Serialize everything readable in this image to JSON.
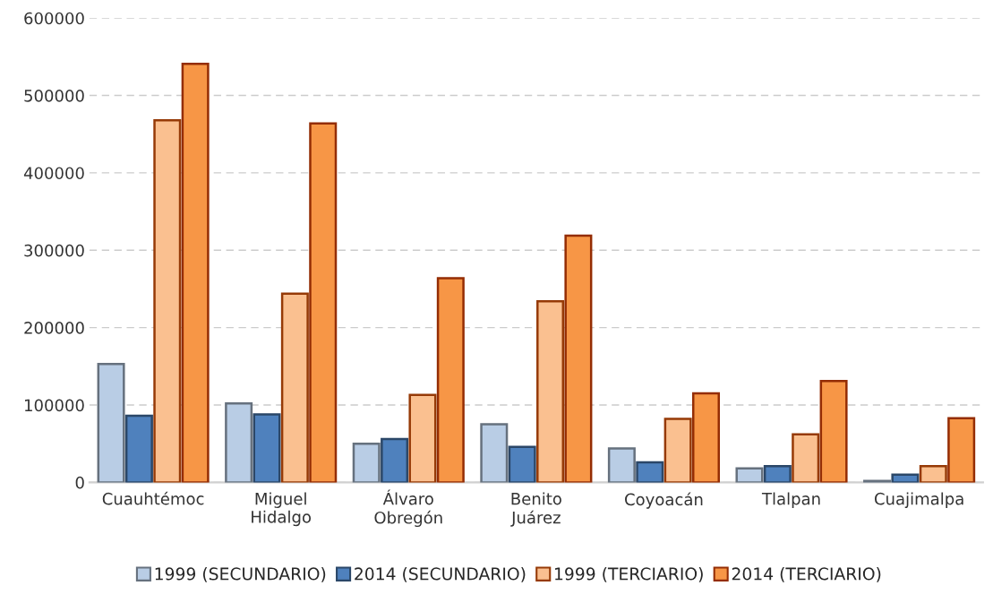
{
  "chart_data": {
    "type": "bar",
    "categories": [
      "Cuauhtémoc",
      "Miguel\nHidalgo",
      "Álvaro\nObregón",
      "Benito\nJuárez",
      "Coyoacán",
      "Tlalpan",
      "Cuajimalpa"
    ],
    "series": [
      {
        "name": "1999 (SECUNDARIO)",
        "color": "#b9cde5",
        "values": [
          153000,
          102000,
          50000,
          75000,
          44000,
          18000,
          2000
        ]
      },
      {
        "name": "2014 (SECUNDARIO)",
        "color": "#4f81bd",
        "values": [
          86000,
          88000,
          56000,
          46000,
          26000,
          21000,
          10000
        ]
      },
      {
        "name": "1999 (TERCIARIO)",
        "color": "#fac090",
        "values": [
          468000,
          244000,
          113000,
          234000,
          82000,
          62000,
          21000
        ]
      },
      {
        "name": "2014 (TERCIARIO)",
        "color": "#f79646",
        "values": [
          541000,
          464000,
          264000,
          319000,
          115000,
          131000,
          83000
        ]
      }
    ],
    "ylim": [
      0,
      600000
    ],
    "yticks": [
      0,
      100000,
      200000,
      300000,
      400000,
      500000,
      600000
    ],
    "grid": "y",
    "legend": "bottom"
  }
}
